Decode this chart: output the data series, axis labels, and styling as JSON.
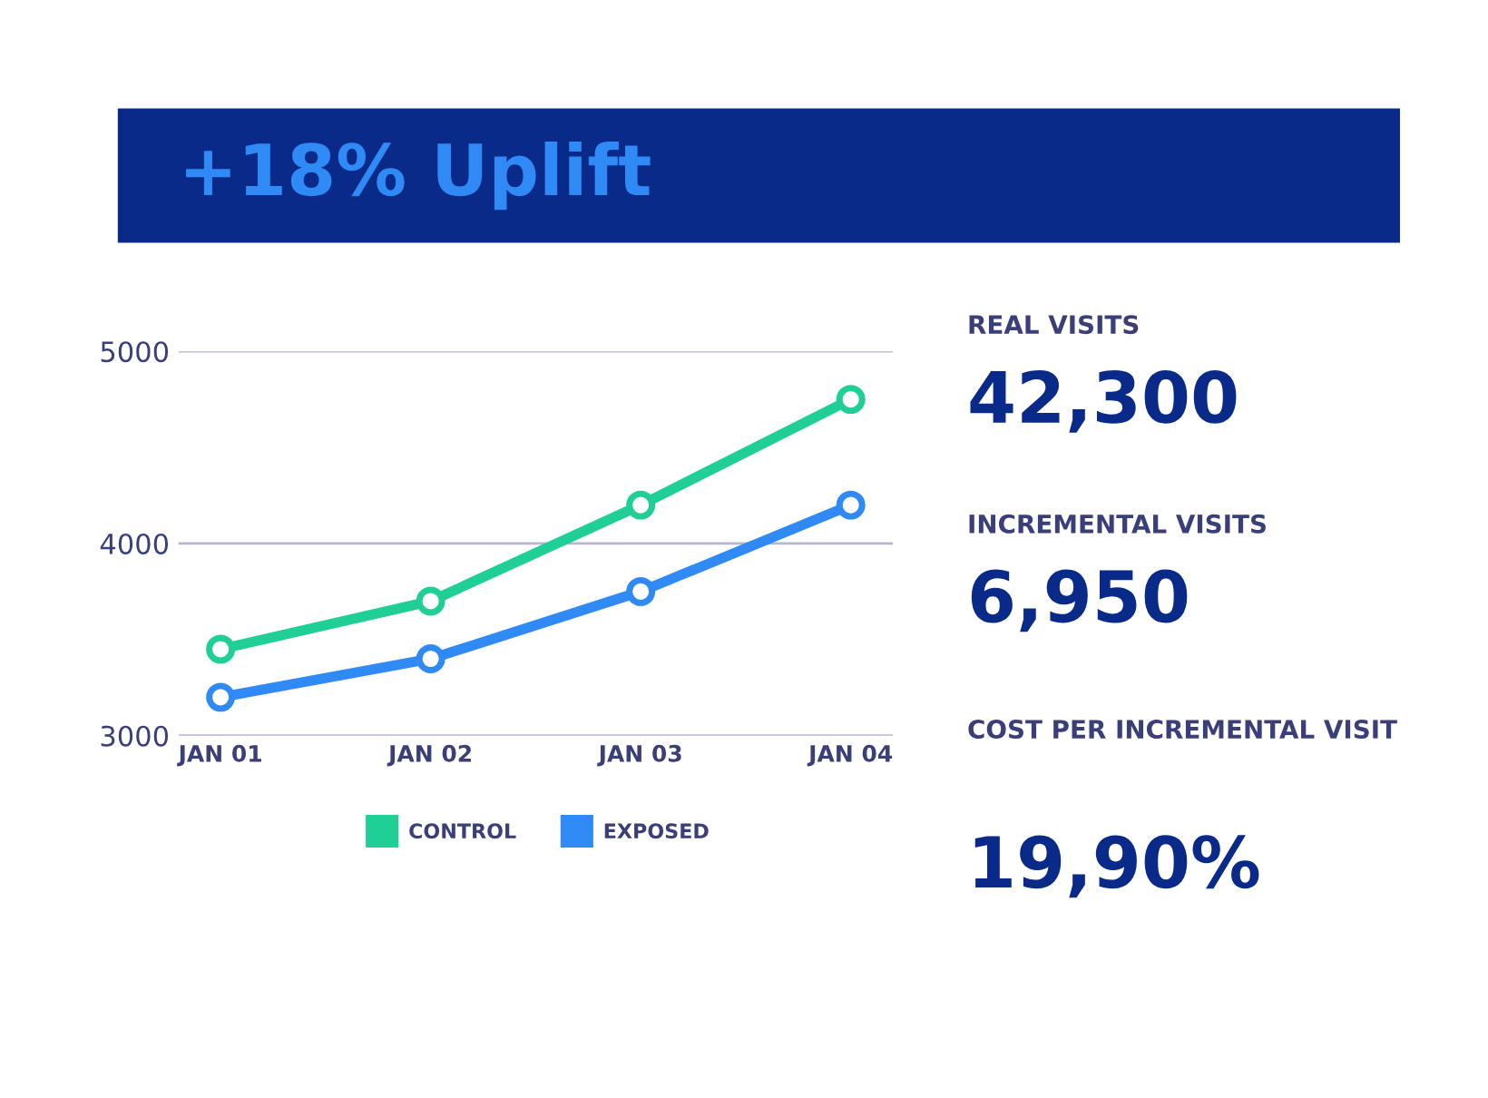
{
  "chart_data": [
    {
      "type": "line",
      "title": "+18% Uplift",
      "categories": [
        "JAN 01",
        "JAN 02",
        "JAN 03",
        "JAN 04"
      ],
      "series": [
        {
          "name": "CONTROL",
          "color": "#1fcf96",
          "values": [
            3450,
            3700,
            4200,
            4750
          ]
        },
        {
          "name": "EXPOSED",
          "color": "#2f8af5",
          "values": [
            3200,
            3400,
            3750,
            4200
          ]
        }
      ],
      "ylim": [
        3000,
        5000
      ],
      "yticks": [
        3000,
        4000,
        5000
      ],
      "grid": "y",
      "legend": "bottom",
      "marker": "circle",
      "line_style": "solid"
    },
    {
      "type": "other",
      "annotations": [
        "REAL VISITS",
        "42,300",
        "INCREMENTAL VISITS",
        "6,950",
        "COST PER INCREMENTAL VISIT",
        "19,90%"
      ]
    }
  ]
}
